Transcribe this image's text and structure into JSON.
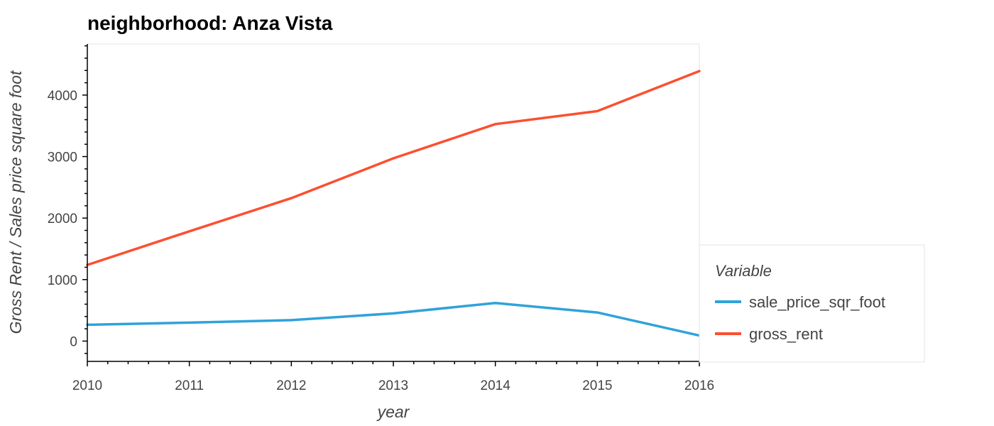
{
  "chart_data": {
    "type": "line",
    "title": "neighborhood: Anza Vista",
    "xlabel": "year",
    "ylabel": "Gross Rent / Sales price square foot",
    "x": [
      2010,
      2011,
      2012,
      2013,
      2014,
      2015,
      2016
    ],
    "xlim": [
      2010,
      2016
    ],
    "ylim": [
      -330,
      4830
    ],
    "x_ticks": [
      "2010",
      "2011",
      "2012",
      "2013",
      "2014",
      "2015",
      "2016"
    ],
    "y_ticks": [
      "0",
      "1000",
      "2000",
      "3000",
      "4000"
    ],
    "grid": false,
    "legend": {
      "title": "Variable",
      "position": "right"
    },
    "series": [
      {
        "name": "sale_price_sqr_foot",
        "color": "#30a2da",
        "values": [
          266,
          300,
          341,
          450,
          619,
          465,
          90
        ]
      },
      {
        "name": "gross_rent",
        "color": "#fc4f30",
        "values": [
          1239,
          1785,
          2324,
          2971,
          3528,
          3739,
          4390
        ]
      }
    ]
  }
}
